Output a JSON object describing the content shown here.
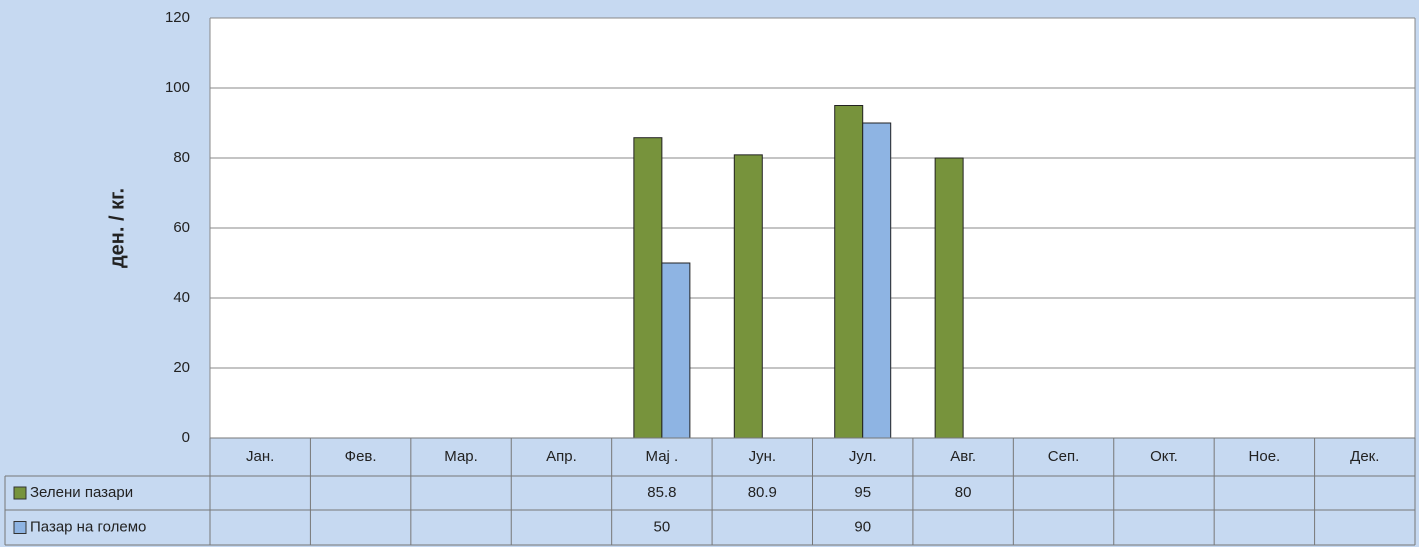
{
  "chart_data": {
    "type": "bar",
    "y_label": "ден. / кг.",
    "categories": [
      "Јан.",
      "Фев.",
      "Мар.",
      "Апр.",
      "Мај .",
      "Јун.",
      "Јул.",
      "Авг.",
      "Сеп.",
      "Окт.",
      "Ное.",
      "Дек."
    ],
    "series": [
      {
        "name": "Зелени пазари",
        "color": "#77933c",
        "values": [
          null,
          null,
          null,
          null,
          85.8,
          80.9,
          95,
          80,
          null,
          null,
          null,
          null
        ]
      },
      {
        "name": "Пазар на големо",
        "color": "#8eb4e3",
        "values": [
          null,
          null,
          null,
          null,
          50,
          null,
          90,
          null,
          null,
          null,
          null,
          null
        ]
      }
    ],
    "ylim": [
      0,
      120
    ],
    "yticks": [
      0,
      20,
      40,
      60,
      80,
      100,
      120
    ],
    "grid": true,
    "data_table": true
  }
}
